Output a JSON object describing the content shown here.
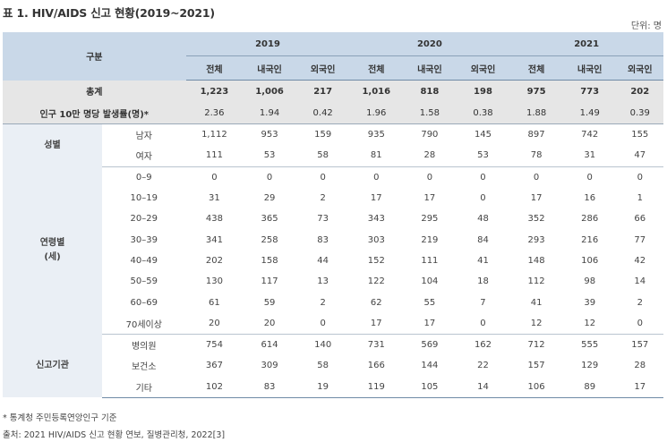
{
  "title": "표 1. HIV/AIDS 신고 현황(2019~2021)",
  "unit": "단위: 명",
  "header": {
    "category": "구분",
    "years": [
      "2019",
      "2020",
      "2021"
    ],
    "subcols": [
      "전체",
      "내국인",
      "외국인"
    ]
  },
  "rows": {
    "total": {
      "label": "총계",
      "values": [
        "1,223",
        "1,006",
        "217",
        "1,016",
        "818",
        "198",
        "975",
        "773",
        "202"
      ]
    },
    "rate": {
      "label": "인구 10만 명당 발생률(명)*",
      "values": [
        "2.36",
        "1.94",
        "0.42",
        "1.96",
        "1.58",
        "0.38",
        "1.88",
        "1.49",
        "0.39"
      ]
    },
    "gender": {
      "group": "성별",
      "items": [
        {
          "label": "남자",
          "values": [
            "1,112",
            "953",
            "159",
            "935",
            "790",
            "145",
            "897",
            "742",
            "155"
          ]
        },
        {
          "label": "여자",
          "values": [
            "111",
            "53",
            "58",
            "81",
            "28",
            "53",
            "78",
            "31",
            "47"
          ]
        }
      ]
    },
    "age": {
      "group_line1": "연령별",
      "group_line2": "(세)",
      "items": [
        {
          "label": "0–9",
          "values": [
            "0",
            "0",
            "0",
            "0",
            "0",
            "0",
            "0",
            "0",
            "0"
          ]
        },
        {
          "label": "10–19",
          "values": [
            "31",
            "29",
            "2",
            "17",
            "17",
            "0",
            "17",
            "16",
            "1"
          ]
        },
        {
          "label": "20–29",
          "values": [
            "438",
            "365",
            "73",
            "343",
            "295",
            "48",
            "352",
            "286",
            "66"
          ]
        },
        {
          "label": "30–39",
          "values": [
            "341",
            "258",
            "83",
            "303",
            "219",
            "84",
            "293",
            "216",
            "77"
          ]
        },
        {
          "label": "40–49",
          "values": [
            "202",
            "158",
            "44",
            "152",
            "111",
            "41",
            "148",
            "106",
            "42"
          ]
        },
        {
          "label": "50–59",
          "values": [
            "130",
            "117",
            "13",
            "122",
            "104",
            "18",
            "112",
            "98",
            "14"
          ]
        },
        {
          "label": "60–69",
          "values": [
            "61",
            "59",
            "2",
            "62",
            "55",
            "7",
            "41",
            "39",
            "2"
          ]
        },
        {
          "label": "70세이상",
          "values": [
            "20",
            "20",
            "0",
            "17",
            "17",
            "0",
            "12",
            "12",
            "0"
          ]
        }
      ]
    },
    "agency": {
      "group": "신고기관",
      "items": [
        {
          "label": "병의원",
          "values": [
            "754",
            "614",
            "140",
            "731",
            "569",
            "162",
            "712",
            "555",
            "157"
          ]
        },
        {
          "label": "보건소",
          "values": [
            "367",
            "309",
            "58",
            "166",
            "144",
            "22",
            "157",
            "129",
            "28"
          ]
        },
        {
          "label": "기타",
          "values": [
            "102",
            "83",
            "19",
            "119",
            "105",
            "14",
            "106",
            "89",
            "17"
          ]
        }
      ]
    }
  },
  "footnotes": {
    "note1": "* 통계청 주민등록연앙인구 기준",
    "note2": "출처: 2021 HIV/AIDS 신고 현황 연보, 질병관리청, 2022[3]"
  }
}
